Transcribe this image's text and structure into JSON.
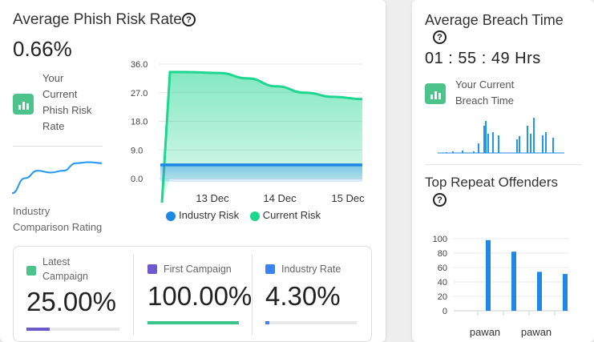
{
  "phish": {
    "title": "Average Phish Risk Rate",
    "rate": "0.66%",
    "your_label_lines": [
      "Your",
      "Current",
      "Phish Risk",
      "Rate"
    ],
    "industry_label_lines": [
      "Industry",
      "Comparison Rating"
    ],
    "legend": {
      "industry": "Industry Risk",
      "current": "Current Risk"
    },
    "colors": {
      "industry": "#1e88e5",
      "current": "#1fd68f"
    }
  },
  "breach": {
    "title": "Average Breach Time",
    "time": "01 : 55 : 49 Hrs",
    "your_label_lines": [
      "Your Current",
      "Breach Time"
    ]
  },
  "offenders": {
    "title": "Top Repeat Offenders"
  },
  "stats": [
    {
      "label_lines": [
        "Latest",
        "Campaign"
      ],
      "value": "25.00%",
      "color": "#4cc38a",
      "bar_color": "#6a5acd",
      "progress": 0.25
    },
    {
      "label_lines": [
        "First Campaign"
      ],
      "value": "100.00%",
      "color": "#6a5acd",
      "bar_color": "#3cc48a",
      "progress": 1.0
    },
    {
      "label_lines": [
        "Industry Rate"
      ],
      "value": "4.30%",
      "color": "#3b82f6",
      "bar_color": "#3b82f6",
      "progress": 0.043
    }
  ],
  "chart_data": [
    {
      "type": "area",
      "x_ticks": [
        "13 Dec",
        "14 Dec",
        "15 Dec"
      ],
      "y_ticks": [
        36.0,
        27.0,
        18.0,
        9.0,
        0.0
      ],
      "ylim": [
        0,
        36
      ],
      "legend_position": "bottom",
      "series": [
        {
          "name": "Industry Risk",
          "values": [
            4.3,
            4.3,
            4.3,
            4.3,
            4.3,
            4.3,
            4.3,
            4.3
          ]
        },
        {
          "name": "Current Risk",
          "values": [
            0,
            33.5,
            33.2,
            31.5,
            29,
            27,
            25.7,
            25
          ]
        }
      ]
    },
    {
      "type": "line",
      "series": [
        {
          "values": [
            2,
            10,
            14,
            13,
            14,
            18,
            18.5,
            18
          ]
        }
      ]
    },
    {
      "type": "bar",
      "series": [
        {
          "values": [
            0,
            0,
            0,
            0,
            0,
            2,
            0,
            0,
            0,
            3,
            0,
            0,
            0,
            0,
            0,
            0,
            0,
            0,
            0,
            0,
            1,
            0,
            0,
            0,
            10,
            0,
            0,
            0,
            0,
            0,
            0,
            0,
            0,
            0,
            0,
            0,
            0,
            0,
            0,
            0,
            0,
            0,
            0,
            0,
            0,
            0,
            0,
            0,
            0,
            0,
            0,
            0,
            0,
            0,
            0,
            0,
            0,
            0,
            0,
            0,
            0,
            0,
            0,
            0,
            0,
            0,
            0,
            0,
            0,
            0,
            0,
            0,
            0,
            0,
            0,
            0,
            0,
            0,
            0,
            0,
            0,
            0,
            0,
            0,
            0,
            0,
            0,
            0,
            0,
            0,
            0,
            0,
            0,
            0,
            0,
            0,
            0,
            0,
            0,
            0,
            0,
            0,
            0,
            0,
            0,
            0,
            0,
            0,
            0,
            0,
            0,
            0,
            0,
            0,
            0,
            0,
            0,
            0,
            0,
            0,
            0,
            0,
            0,
            0,
            0,
            0,
            0,
            0,
            0,
            0,
            0,
            0,
            0,
            0,
            0,
            0,
            0,
            0,
            0,
            0,
            0,
            0,
            0,
            0,
            0,
            0,
            0,
            0,
            0,
            0,
            0,
            0,
            0,
            0,
            0,
            0,
            0,
            0,
            0,
            0,
            0,
            0,
            0,
            0,
            0,
            0,
            0,
            0,
            0,
            0,
            0,
            0,
            0,
            0,
            0,
            0,
            0,
            0,
            0,
            0,
            0,
            0,
            0,
            0,
            0,
            0,
            0,
            0,
            0,
            0,
            0,
            0,
            0,
            0,
            0,
            0,
            0,
            0,
            0,
            0,
            0,
            0,
            0,
            0,
            0,
            0,
            0,
            0,
            0,
            0,
            0,
            0,
            0,
            0
          ]
        }
      ]
    },
    {
      "type": "bar",
      "categories": [
        "pawan",
        "",
        "pawan",
        ""
      ],
      "y_ticks": [
        100,
        80,
        60,
        40,
        20,
        0
      ],
      "ylim": [
        0,
        100
      ],
      "series": [
        {
          "values": [
            98,
            82,
            54,
            51
          ]
        }
      ]
    }
  ]
}
